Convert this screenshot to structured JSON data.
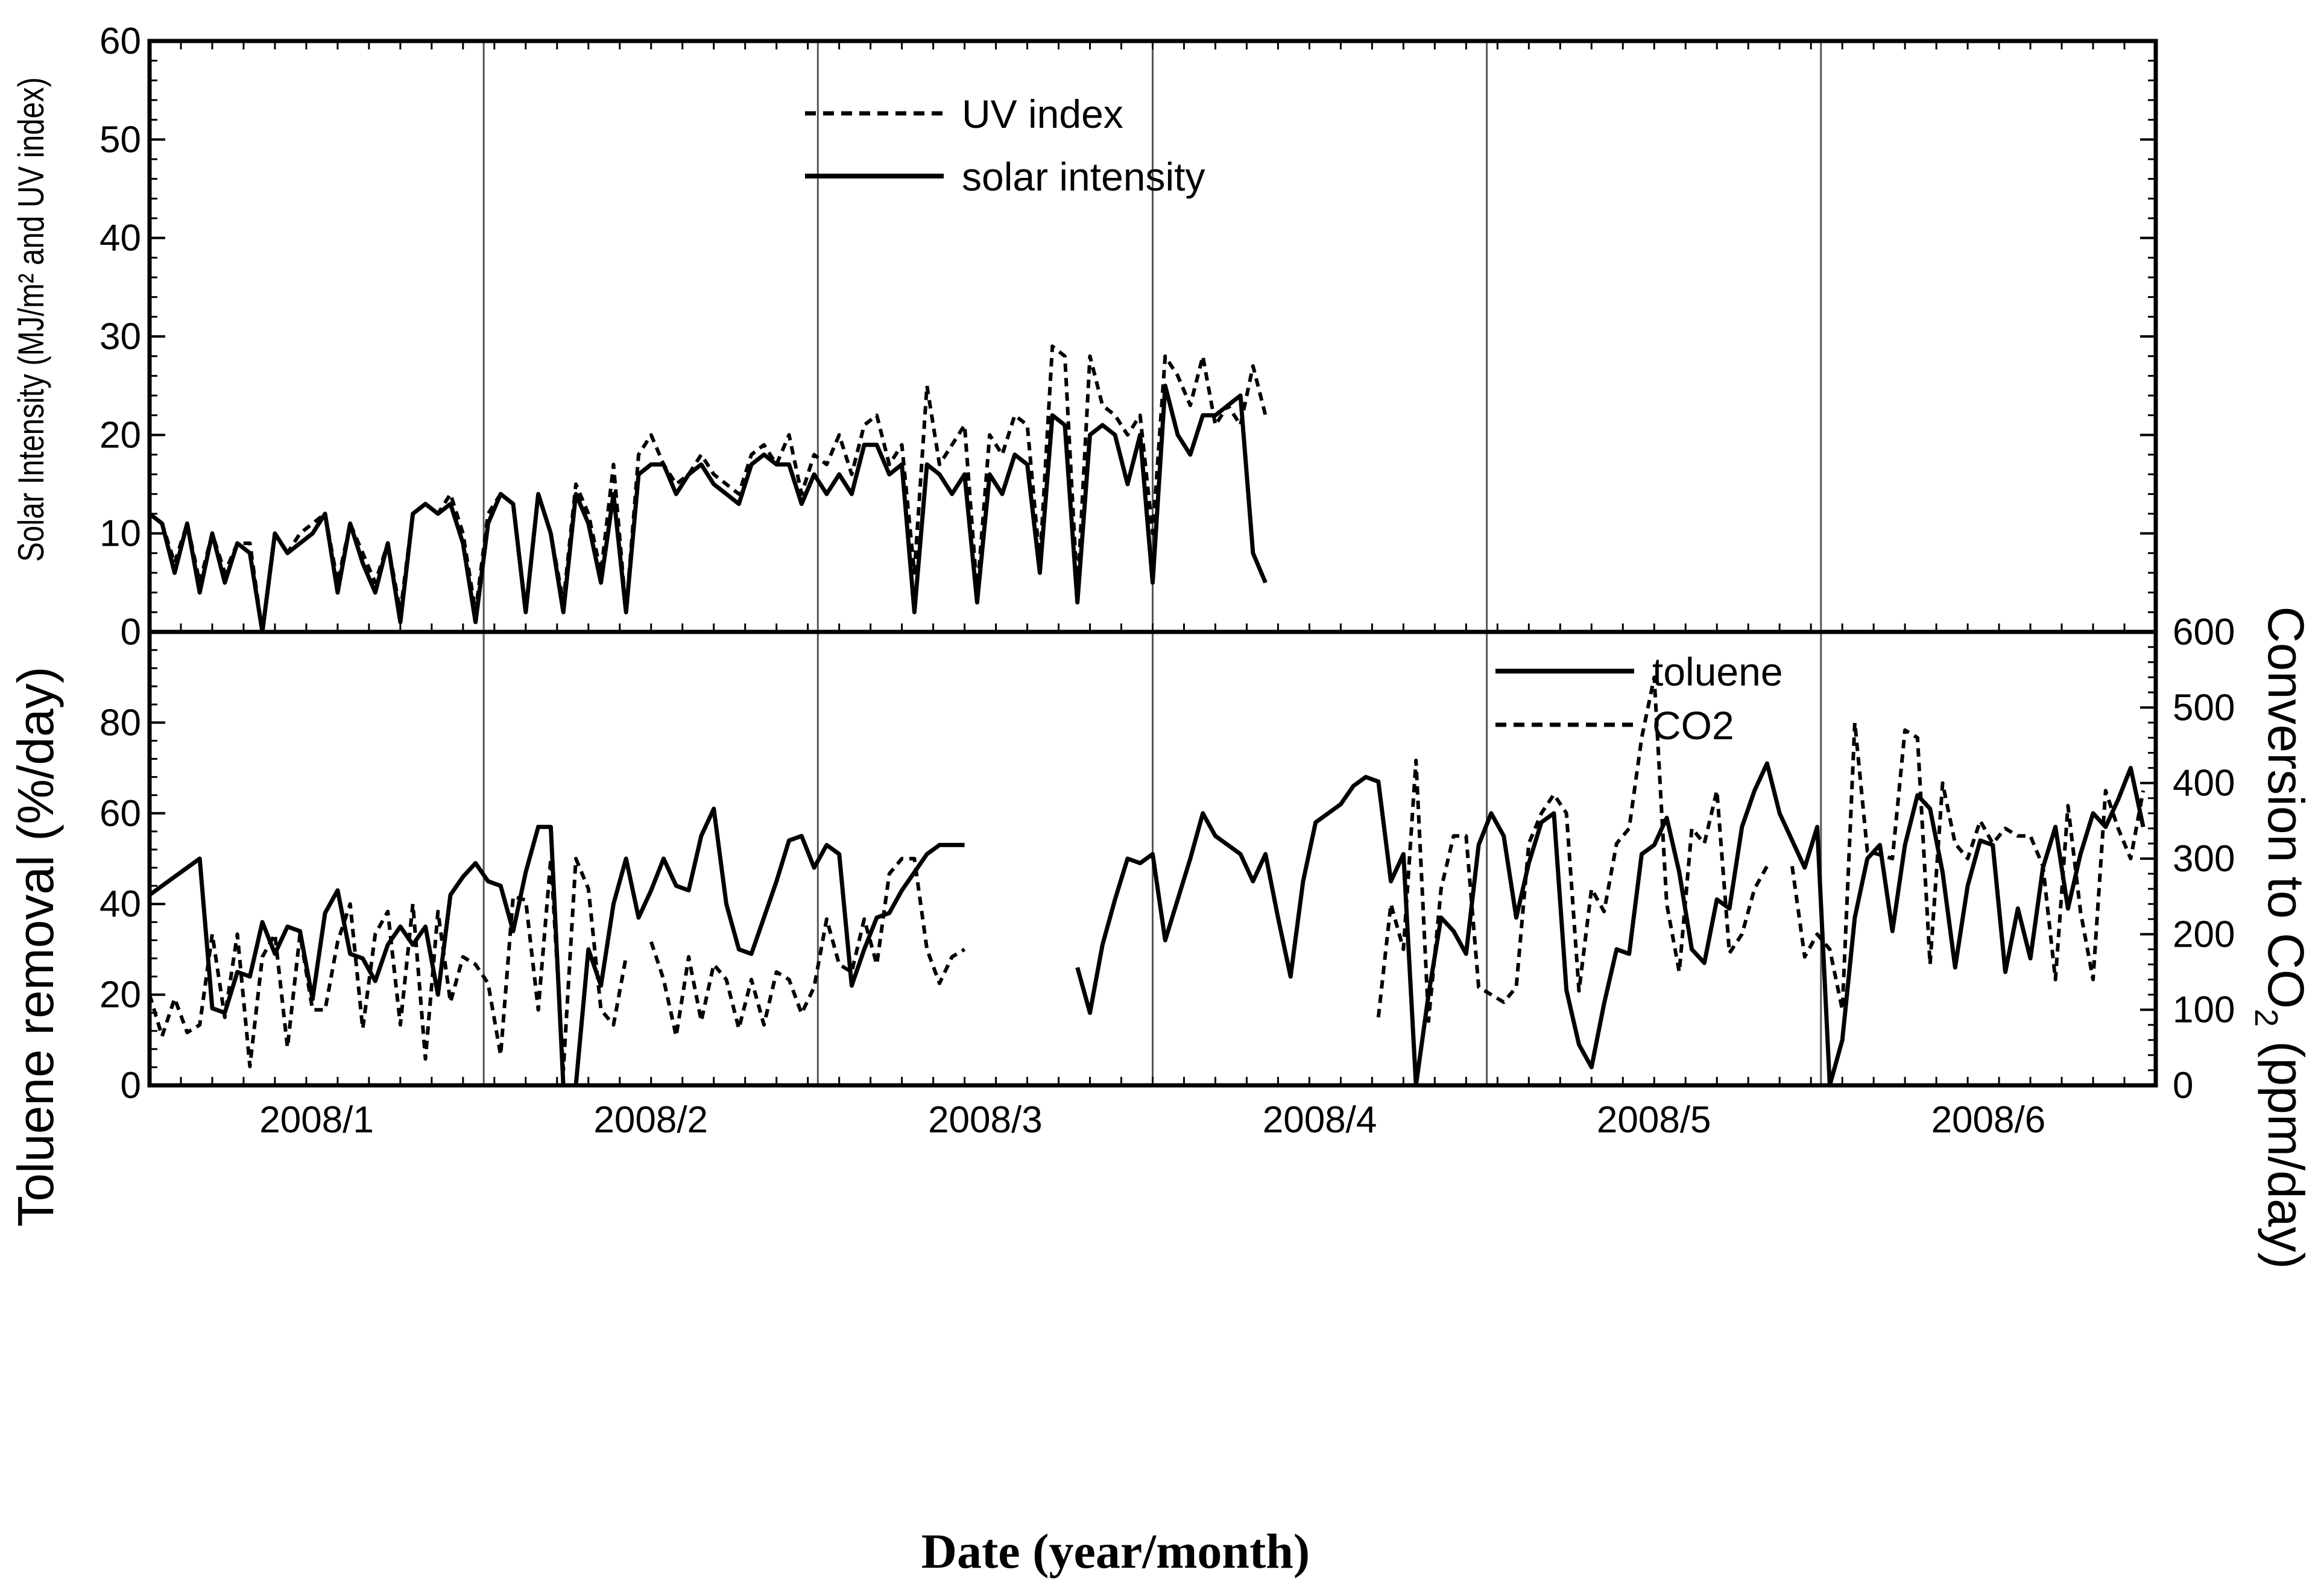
{
  "chart_data": [
    {
      "type": "line",
      "panel": "top",
      "ylabel": "Solar Intensity (MJ/m² and UV index)",
      "ylim": [
        0,
        60
      ],
      "yticks": [
        "0",
        "10",
        "20",
        "30",
        "40",
        "50",
        "60"
      ],
      "legend": {
        "placement": "top-center",
        "entries": [
          "UV index",
          "solar intensity"
        ]
      },
      "series": [
        {
          "name": "UV index",
          "style": "dashed",
          "x": [
            0,
            2,
            4,
            6,
            8,
            10,
            12,
            14,
            16,
            18,
            20,
            22,
            24,
            26,
            28,
            30,
            32,
            34,
            36,
            38,
            40,
            42,
            44,
            46,
            48,
            50,
            52,
            54,
            56,
            58,
            60,
            62,
            64,
            66,
            68,
            70,
            72,
            74,
            76,
            78,
            80,
            82,
            84,
            86,
            88,
            90,
            92,
            94,
            96,
            98,
            100,
            102,
            104,
            106,
            108,
            110,
            112,
            114,
            116,
            118,
            120,
            122,
            124,
            126,
            128,
            130,
            132,
            134,
            136,
            138,
            140,
            142,
            144,
            146,
            148,
            150,
            152,
            154,
            156,
            158,
            160,
            162,
            164,
            166,
            168,
            170,
            172,
            174,
            176,
            178
          ],
          "values": [
            12,
            11,
            7,
            11,
            5,
            10,
            6,
            9,
            9,
            0,
            10,
            8,
            10,
            11,
            12,
            5,
            11,
            8,
            5,
            9,
            2,
            12,
            13,
            12,
            14,
            10,
            2,
            12,
            14,
            13,
            2,
            14,
            10,
            3,
            15,
            12,
            6,
            17,
            2,
            18,
            20,
            17,
            15,
            16,
            18,
            16,
            15,
            14,
            18,
            19,
            17,
            20,
            14,
            18,
            17,
            20,
            16,
            21,
            22,
            17,
            19,
            6,
            25,
            17,
            19,
            21,
            4,
            20,
            18,
            22,
            21,
            7,
            29,
            28,
            4,
            28,
            23,
            22,
            20,
            22,
            10,
            28,
            26,
            23,
            28,
            21,
            23,
            21,
            27,
            22
          ],
          "note": "digitized approximately"
        },
        {
          "name": "solar intensity",
          "style": "solid",
          "values": [
            12,
            11,
            6,
            11,
            4,
            10,
            5,
            9,
            8,
            0,
            10,
            8,
            9,
            10,
            12,
            4,
            11,
            7,
            4,
            9,
            1,
            12,
            13,
            12,
            13,
            9,
            1,
            11,
            14,
            13,
            2,
            14,
            10,
            2,
            14,
            11,
            5,
            14,
            2,
            16,
            17,
            17,
            14,
            16,
            17,
            15,
            14,
            13,
            17,
            18,
            17,
            17,
            13,
            16,
            14,
            16,
            14,
            19,
            19,
            16,
            17,
            2,
            17,
            16,
            14,
            16,
            3,
            16,
            14,
            18,
            17,
            6,
            22,
            21,
            3,
            20,
            21,
            20,
            15,
            20,
            5,
            25,
            20,
            18,
            22,
            22,
            23,
            24,
            8,
            5
          ],
          "note": "digitized approximately"
        }
      ]
    },
    {
      "type": "line",
      "panel": "bottom",
      "xlabel": "Date (year/month)",
      "ylabel": "Toluene removal (%/day)",
      "ylabel_right": "Conversion to CO2 (ppm/day)",
      "ylabel_right_parts": {
        "pre": "Conversion to CO",
        "sub": "2",
        "post": " (ppm/day)"
      },
      "ylim": [
        0,
        100
      ],
      "ylim_right": [
        0,
        600
      ],
      "yticks": [
        "0",
        "20",
        "40",
        "60",
        "80"
      ],
      "yticks_right": [
        "0",
        "100",
        "200",
        "300",
        "400",
        "500",
        "600"
      ],
      "categories": [
        "2008/1",
        "2008/2",
        "2008/3",
        "2008/4",
        "2008/5",
        "2008/6"
      ],
      "legend": {
        "placement": "top-right",
        "entries": [
          "toluene",
          "CO2"
        ]
      },
      "series": [
        {
          "name": "toluene",
          "style": "solid",
          "axis": "left",
          "segments": [
            {
              "x": [
                0,
                4,
                8,
                10,
                12,
                14,
                16,
                18,
                20,
                22,
                24,
                26,
                28,
                30,
                32,
                34,
                36,
                38,
                40,
                42,
                44,
                46,
                48,
                50,
                52,
                54,
                56,
                58,
                60,
                62,
                64,
                66,
                68,
                70,
                72,
                74,
                76,
                78,
                80,
                82,
                84,
                86,
                88,
                90,
                92,
                94,
                96,
                98,
                100,
                102,
                104,
                106,
                108,
                110,
                112,
                114,
                116,
                118,
                120,
                122,
                124,
                126,
                128,
                130
              ],
              "values": [
                42,
                46,
                50,
                17,
                16,
                25,
                24,
                36,
                29,
                35,
                34,
                19,
                38,
                43,
                29,
                28,
                23,
                31,
                35,
                31,
                35,
                20,
                42,
                46,
                49,
                45,
                44,
                34,
                47,
                57,
                57,
                0,
                0,
                30,
                22,
                40,
                50,
                37,
                43,
                50,
                44,
                43,
                55,
                61,
                40,
                30,
                29,
                37,
                45,
                54,
                55,
                48,
                53,
                51,
                22,
                30,
                37,
                38,
                43,
                47,
                51,
                53,
                53,
                53
              ]
            },
            {
              "x": [
                148,
                150,
                152,
                154,
                156,
                158,
                160,
                162,
                164,
                166,
                168,
                170,
                172,
                174,
                176,
                178,
                180,
                182,
                184,
                186,
                188,
                190,
                192,
                194,
                196,
                198,
                200,
                202,
                204,
                206,
                208,
                210,
                212,
                214,
                216,
                218,
                220,
                222,
                224,
                226,
                228,
                230,
                232,
                234,
                236,
                238,
                240,
                242,
                244,
                246,
                248,
                250,
                252,
                254,
                256,
                258,
                260,
                262,
                264,
                266,
                268,
                270,
                272,
                274,
                276,
                278,
                280,
                282,
                284,
                286,
                288,
                290,
                292,
                294,
                296,
                298,
                300,
                302,
                304,
                306,
                308,
                310,
                312,
                314,
                316,
                318
              ],
              "values": [
                26,
                16,
                31,
                41,
                50,
                49,
                51,
                32,
                41,
                50,
                60,
                55,
                53,
                51,
                45,
                51,
                37,
                24,
                45,
                58,
                60,
                62,
                66,
                68,
                67,
                45,
                51,
                0,
                20,
                37,
                34,
                29,
                53,
                60,
                55,
                37,
                49,
                58,
                60,
                21,
                9,
                4,
                18,
                30,
                29,
                51,
                53,
                59,
                47,
                30,
                27,
                41,
                39,
                57,
                65,
                71,
                60,
                54,
                48,
                57,
                0,
                10,
                37,
                50,
                53,
                34,
                53,
                64,
                61,
                47,
                26,
                44,
                54,
                53,
                25,
                39,
                28,
                48,
                57,
                39,
                51,
                60,
                57,
                63,
                70,
                57
              ],
              "note": "digitized approximately"
            }
          ]
        },
        {
          "name": "CO2",
          "style": "dashed",
          "axis": "right",
          "values_note": "scattered dashed line segments, digitized approximately, ppm/day",
          "segments": [
            {
              "x": [
                0,
                2,
                4,
                6,
                8,
                10,
                12,
                14,
                16,
                18,
                20,
                22,
                24,
                26,
                28,
                30,
                32,
                34,
                36,
                38,
                40,
                42,
                44,
                46,
                48,
                50,
                52,
                54,
                56,
                58,
                60,
                62,
                64,
                66,
                68,
                70,
                72,
                74,
                76
              ],
              "values": [
                120,
                65,
                115,
                70,
                80,
                200,
                90,
                200,
                25,
                170,
                200,
                50,
                200,
                100,
                100,
                190,
                240,
                75,
                200,
                230,
                80,
                240,
                35,
                230,
                110,
                170,
                160,
                135,
                40,
                250,
                245,
                100,
                300,
                20,
                300,
                260,
                100,
                80,
                170
              ]
            },
            {
              "x": [
                80,
                82,
                84,
                86,
                88,
                90,
                92,
                94,
                96,
                98,
                100,
                102,
                104,
                106,
                108,
                110,
                112,
                114,
                116,
                118,
                120,
                122,
                124,
                126,
                128,
                130
              ],
              "values": [
                190,
                140,
                65,
                170,
                85,
                160,
                140,
                75,
                140,
                80,
                150,
                140,
                95,
                130,
                220,
                160,
                150,
                220,
                160,
                280,
                300,
                300,
                180,
                135,
                170,
                180
              ]
            },
            {
              "x": [
                196,
                198,
                200,
                202,
                204,
                206,
                208,
                210,
                212,
                214,
                216,
                218,
                220,
                222,
                224,
                226,
                228,
                230,
                232,
                234,
                236,
                238,
                240,
                242,
                244,
                246,
                248,
                250,
                252,
                254,
                256,
                258
              ],
              "values": [
                90,
                240,
                180,
                430,
                85,
                260,
                330,
                330,
                130,
                120,
                110,
                130,
                320,
                360,
                385,
                360,
                125,
                260,
                230,
                320,
                340,
                460,
                540,
                240,
                150,
                340,
                320,
                390,
                175,
                200,
                260,
                290
              ]
            },
            {
              "x": [
                262,
                264,
                266,
                268,
                270,
                272,
                274,
                276,
                278,
                280,
                282,
                284,
                286,
                288,
                290,
                292,
                294,
                296,
                298,
                300,
                302,
                304,
                306,
                308,
                310,
                312,
                314,
                316,
                318
              ],
              "values": [
                290,
                170,
                200,
                180,
                100,
                480,
                310,
                305,
                300,
                470,
                460,
                160,
                400,
                320,
                300,
                350,
                320,
                340,
                330,
                330,
                290,
                140,
                370,
                230,
                140,
                390,
                340,
                300,
                390
              ],
              "note": "digitized approximately"
            }
          ]
        }
      ]
    }
  ]
}
